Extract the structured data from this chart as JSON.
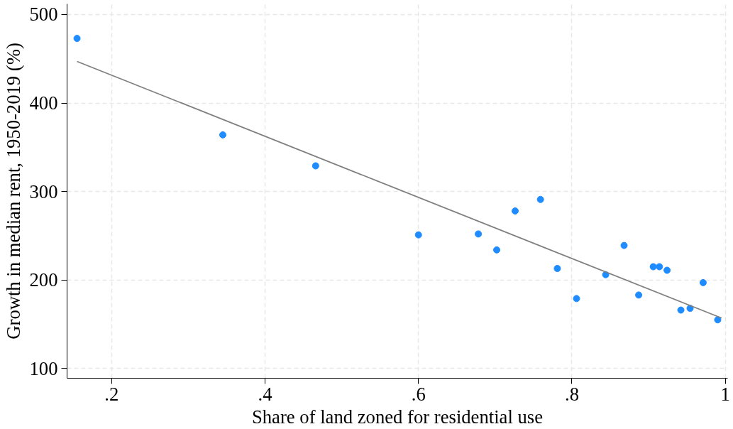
{
  "chart_data": {
    "type": "scatter",
    "xlabel": "Share of land zoned for residential use",
    "ylabel": "Growth in median rent, 1950-2019 (%)",
    "series": [
      {
        "color": "#1e8cff",
        "marker": "circle",
        "x": [
          0.155,
          0.345,
          0.466,
          0.6,
          0.678,
          0.702,
          0.726,
          0.759,
          0.781,
          0.806,
          0.844,
          0.868,
          0.887,
          0.906,
          0.914,
          0.924,
          0.942,
          0.954,
          0.971,
          0.99
        ],
        "values": [
          473,
          364,
          329,
          251,
          252,
          234,
          278,
          291,
          213,
          179,
          206,
          239,
          183,
          215,
          215,
          211,
          166,
          168,
          197,
          155
        ]
      },
      {
        "type": "line",
        "color": "#808080",
        "x": [
          0.155,
          0.995
        ],
        "values": [
          447,
          157
        ]
      }
    ],
    "xlim": [
      0.142,
      1.003
    ],
    "ylim": [
      89,
      512
    ],
    "xticks": [
      {
        "value": 0.2,
        "label": ".2"
      },
      {
        "value": 0.4,
        "label": ".4"
      },
      {
        "value": 0.6,
        "label": ".6"
      },
      {
        "value": 0.8,
        "label": ".8"
      },
      1
    ],
    "yticks": [
      100,
      200,
      300,
      400,
      500
    ],
    "grid": true,
    "line_style": "solid"
  }
}
